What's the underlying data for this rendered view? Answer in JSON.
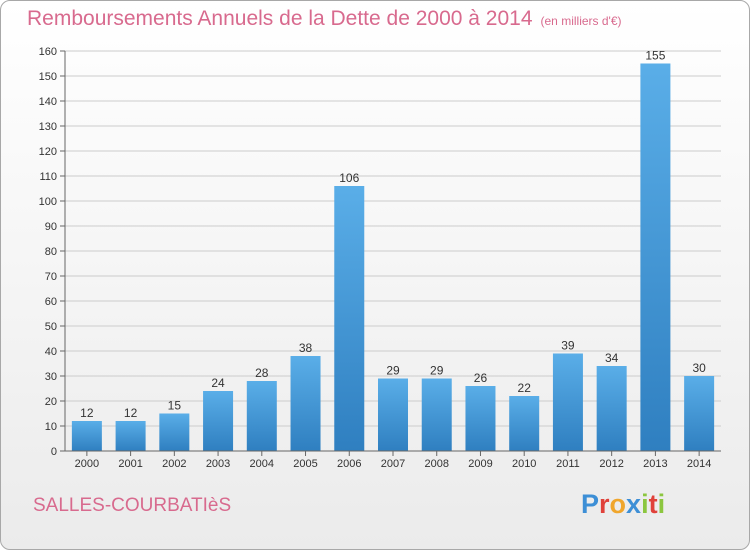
{
  "title": "Remboursements Annuels de la Dette de 2000 à 2014",
  "subtitle": "(en milliers d'€)",
  "commune": "SALLES-COURBATIèS",
  "logo": {
    "text": "Proxiti",
    "letters": [
      {
        "char": "P",
        "color": "#3d8fd6"
      },
      {
        "char": "r",
        "color": "#e0413a"
      },
      {
        "char": "o",
        "color": "#f0a62c"
      },
      {
        "char": "x",
        "color": "#3d8fd6"
      },
      {
        "char": "i",
        "color": "#8cc63f"
      },
      {
        "char": "t",
        "color": "#e0413a"
      },
      {
        "char": "i",
        "color": "#8cc63f"
      }
    ]
  },
  "colors": {
    "bar_top": "#5aaee8",
    "bar_bottom": "#2f7fc0",
    "grid": "#cccccc",
    "title": "#d86a8e"
  },
  "chart_data": {
    "type": "bar",
    "title": "Remboursements Annuels de la Dette de 2000 à 2014",
    "subtitle": "(en milliers d'€)",
    "xlabel": "",
    "ylabel": "",
    "categories": [
      "2000",
      "2001",
      "2002",
      "2003",
      "2004",
      "2005",
      "2006",
      "2007",
      "2008",
      "2009",
      "2010",
      "2011",
      "2012",
      "2013",
      "2014"
    ],
    "values": [
      12,
      12,
      15,
      24,
      28,
      38,
      106,
      29,
      29,
      26,
      22,
      39,
      34,
      155,
      30
    ],
    "ylim": [
      0,
      160
    ],
    "yticks": [
      0,
      10,
      20,
      30,
      40,
      50,
      60,
      70,
      80,
      90,
      100,
      110,
      120,
      130,
      140,
      150,
      160
    ],
    "grid": true,
    "data_labels": true
  }
}
